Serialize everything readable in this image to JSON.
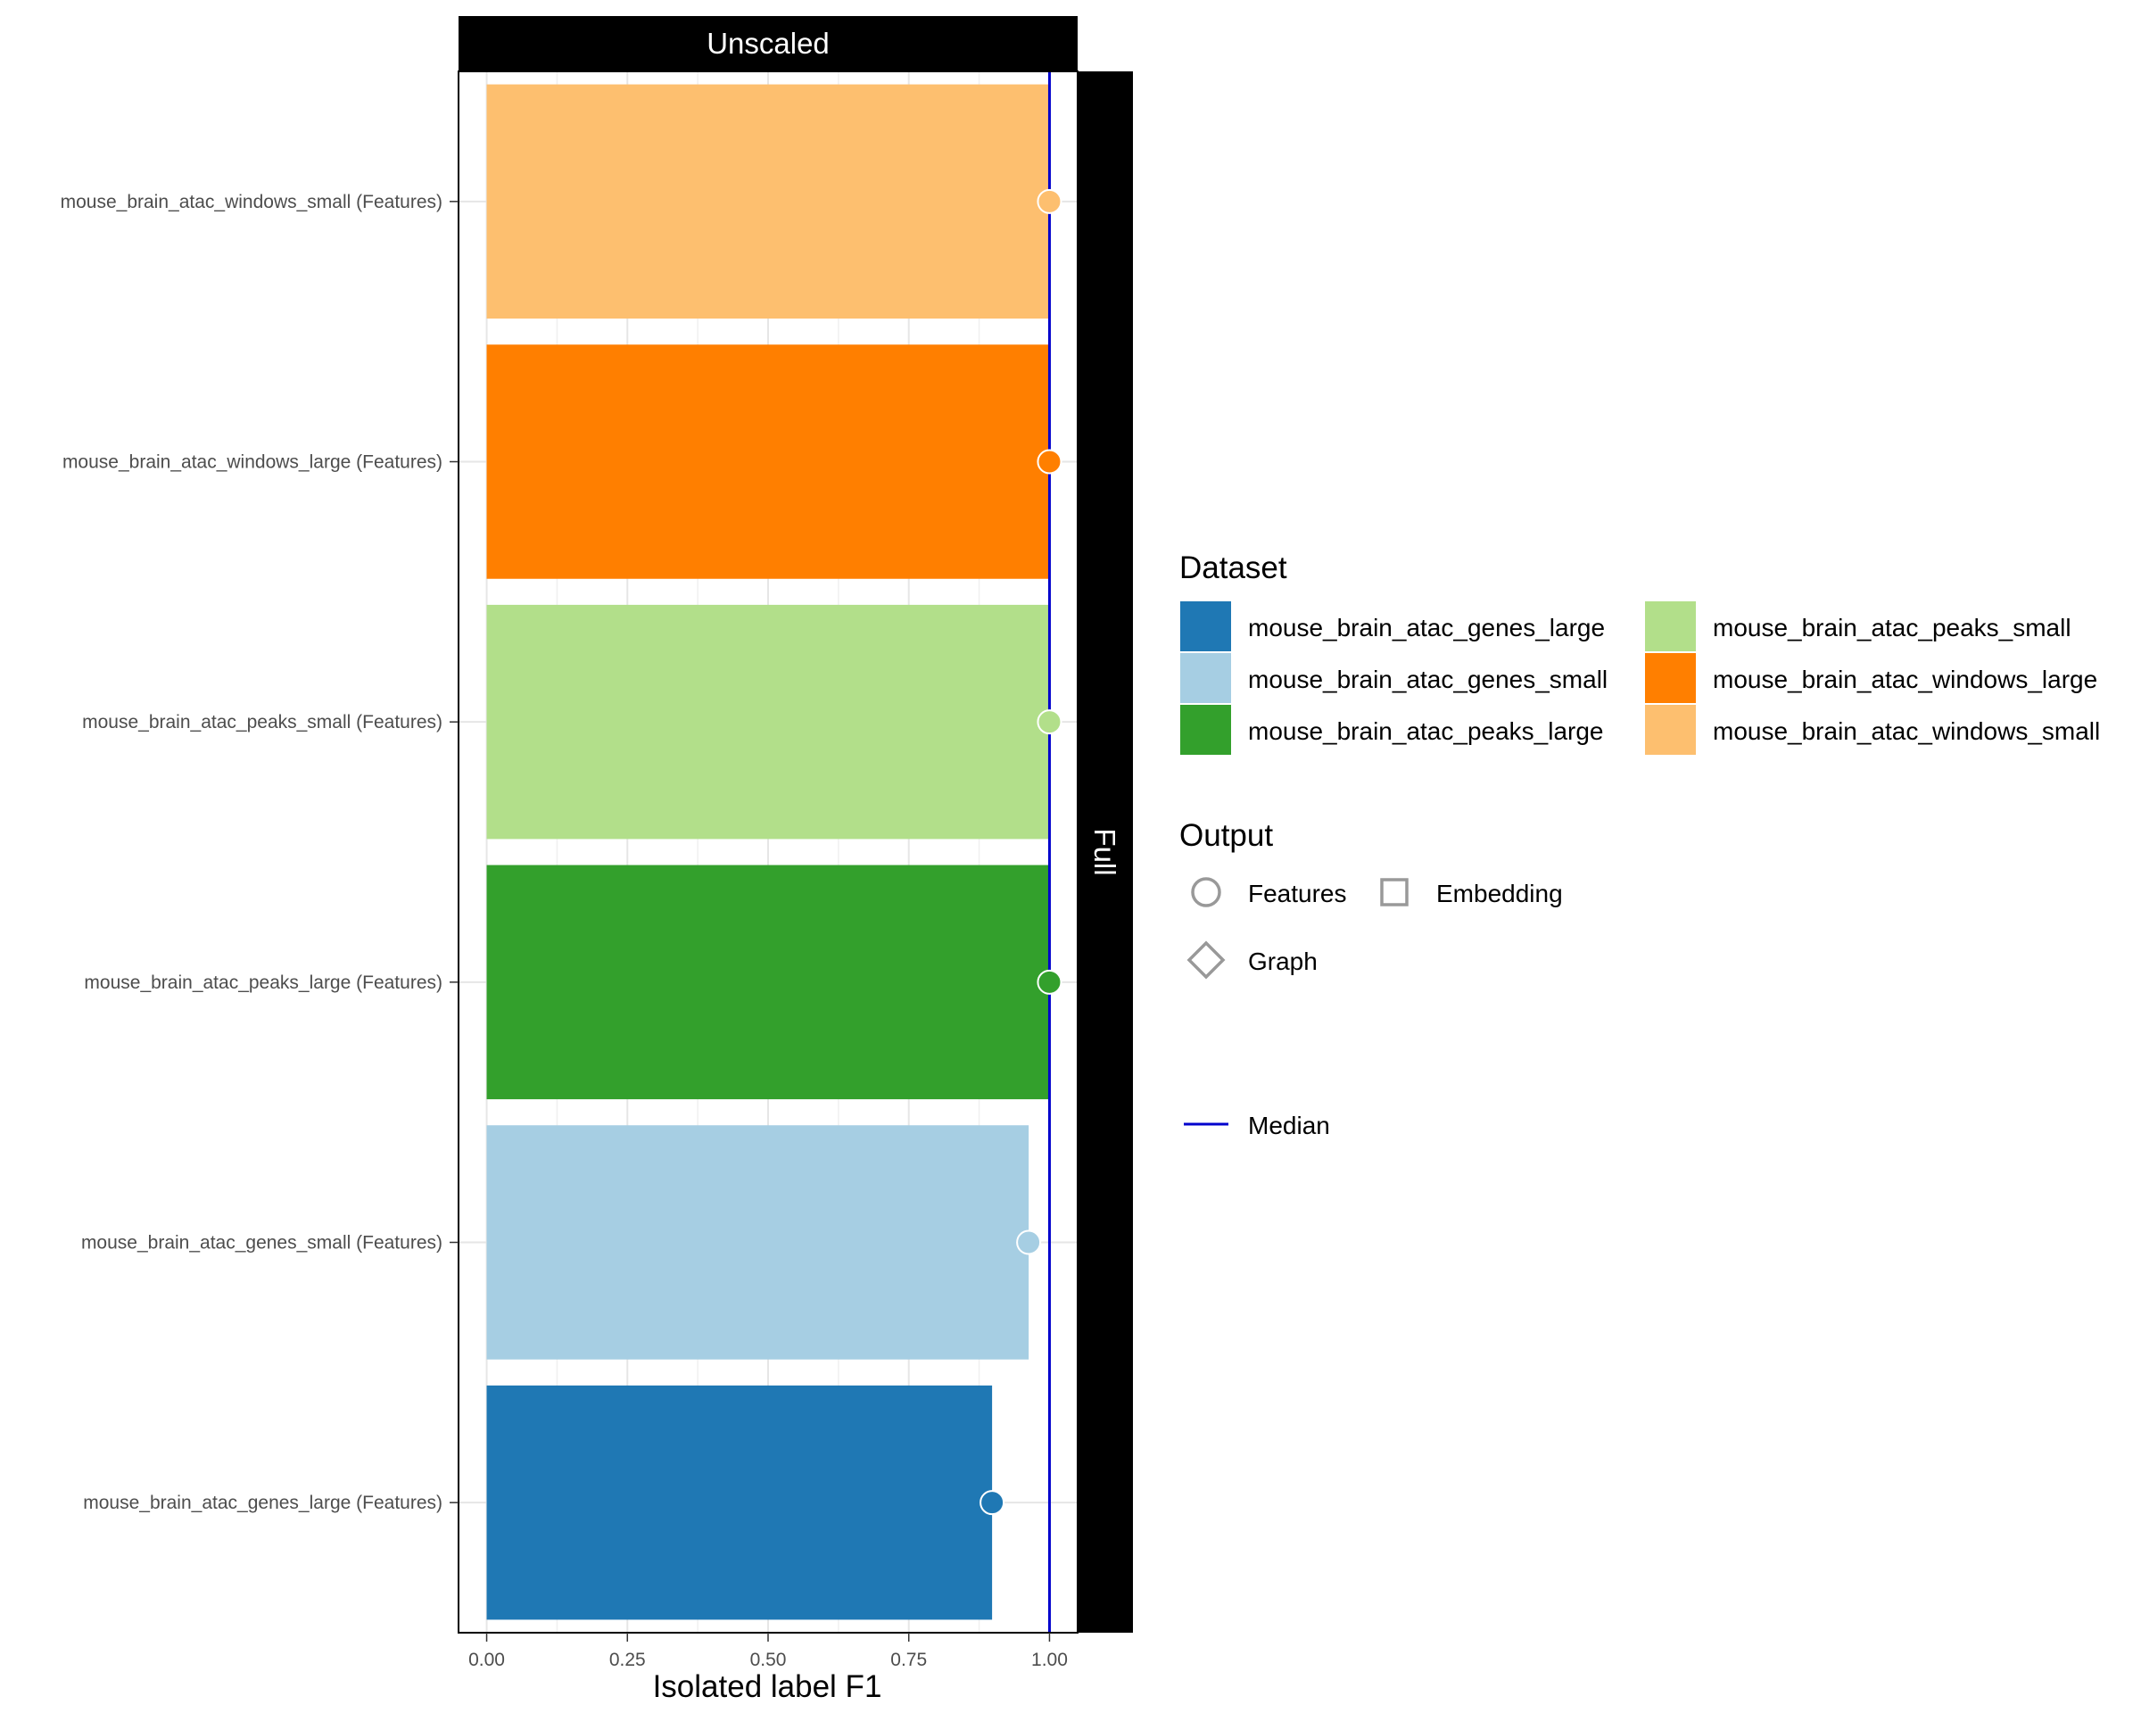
{
  "chart_data": {
    "type": "bar",
    "orientation": "horizontal",
    "facet_top": "Unscaled",
    "facet_right": "Full",
    "xlabel": "Isolated label F1",
    "ylabel": "",
    "xlim": [
      -0.05,
      1.05
    ],
    "x_ticks": [
      0.0,
      0.25,
      0.5,
      0.75,
      1.0
    ],
    "x_tick_labels": [
      "0.00",
      "0.25",
      "0.50",
      "0.75",
      "1.00"
    ],
    "grid": true,
    "legend_position": "right",
    "categories": [
      "mouse_brain_atac_windows_small (Features)",
      "mouse_brain_atac_windows_large (Features)",
      "mouse_brain_atac_peaks_small (Features)",
      "mouse_brain_atac_peaks_large (Features)",
      "mouse_brain_atac_genes_small (Features)",
      "mouse_brain_atac_genes_large (Features)"
    ],
    "values": [
      1.0,
      1.0,
      1.0,
      1.0,
      0.963,
      0.898
    ],
    "colors": [
      "#fdbf6f",
      "#ff7f00",
      "#b2df8a",
      "#33a02c",
      "#a6cee3",
      "#1f78b4"
    ],
    "markers": [
      "circle",
      "circle",
      "circle",
      "circle",
      "circle",
      "circle"
    ],
    "median": 1.0,
    "median_color": "#0000cd",
    "legend": {
      "dataset": {
        "title": "Dataset",
        "items": [
          {
            "label": "mouse_brain_atac_genes_large",
            "color": "#1f78b4"
          },
          {
            "label": "mouse_brain_atac_genes_small",
            "color": "#a6cee3"
          },
          {
            "label": "mouse_brain_atac_peaks_large",
            "color": "#33a02c"
          },
          {
            "label": "mouse_brain_atac_peaks_small",
            "color": "#b2df8a"
          },
          {
            "label": "mouse_brain_atac_windows_large",
            "color": "#ff7f00"
          },
          {
            "label": "mouse_brain_atac_windows_small",
            "color": "#fdbf6f"
          }
        ]
      },
      "output": {
        "title": "Output",
        "items": [
          {
            "label": "Features",
            "shape": "circle"
          },
          {
            "label": "Embedding",
            "shape": "square"
          },
          {
            "label": "Graph",
            "shape": "diamond"
          }
        ]
      },
      "median": {
        "label": "Median"
      }
    }
  }
}
